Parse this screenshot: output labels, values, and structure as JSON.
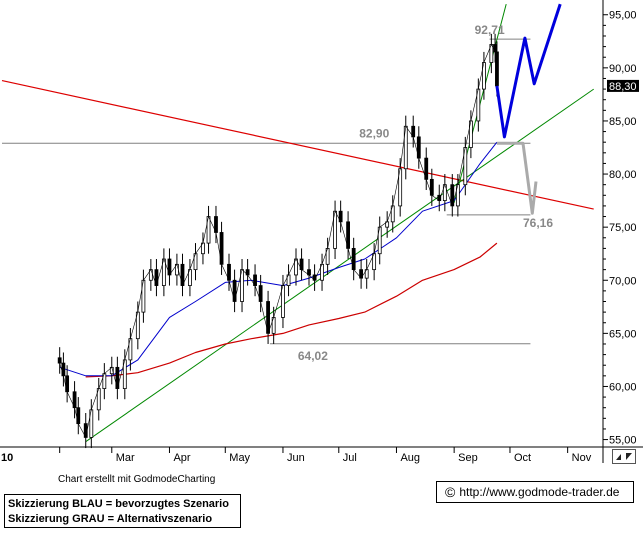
{
  "chart_data": {
    "type": "candlestick",
    "x_labels": [
      "10",
      "Mar",
      "Apr",
      "May",
      "Jun",
      "Jul",
      "Aug",
      "Sep",
      "Oct",
      "Nov"
    ],
    "y_ticks": [
      "95,00",
      "90,00",
      "85,00",
      "80,00",
      "75,00",
      "70,00",
      "65,00",
      "60,00",
      "55,00"
    ],
    "y_tick_values": [
      95,
      90,
      85,
      80,
      75,
      70,
      65,
      60,
      55
    ],
    "ylim": [
      54.3,
      96.2
    ],
    "last_price": "88,30",
    "last_price_value": 88.3,
    "annotations": [
      {
        "text": "92,71",
        "value": 92.71
      },
      {
        "text": "82,90",
        "value": 82.9
      },
      {
        "text": "76,16",
        "value": 76.16
      },
      {
        "text": "64,02",
        "value": 64.02
      }
    ],
    "close_series": [
      [
        "2010-02-01",
        62.2
      ],
      [
        "2010-02-03",
        61.0
      ],
      [
        "2010-02-05",
        59.5
      ],
      [
        "2010-02-09",
        58.0
      ],
      [
        "2010-02-11",
        56.5
      ],
      [
        "2010-02-15",
        55.2
      ],
      [
        "2010-02-18",
        57.8
      ],
      [
        "2010-02-22",
        59.8
      ],
      [
        "2010-02-25",
        61.2
      ],
      [
        "2010-03-01",
        61.8
      ],
      [
        "2010-03-04",
        59.8
      ],
      [
        "2010-03-08",
        62.5
      ],
      [
        "2010-03-11",
        64.5
      ],
      [
        "2010-03-15",
        67.0
      ],
      [
        "2010-03-18",
        70.0
      ],
      [
        "2010-03-22",
        71.0
      ],
      [
        "2010-03-25",
        69.5
      ],
      [
        "2010-03-29",
        72.0
      ],
      [
        "2010-04-01",
        70.5
      ],
      [
        "2010-04-05",
        71.5
      ],
      [
        "2010-04-08",
        69.5
      ],
      [
        "2010-04-12",
        71.0
      ],
      [
        "2010-04-15",
        72.5
      ],
      [
        "2010-04-19",
        73.5
      ],
      [
        "2010-04-22",
        76.0
      ],
      [
        "2010-04-26",
        74.5
      ],
      [
        "2010-04-29",
        71.5
      ],
      [
        "2010-05-03",
        70.0
      ],
      [
        "2010-05-06",
        68.0
      ],
      [
        "2010-05-10",
        71.0
      ],
      [
        "2010-05-13",
        70.5
      ],
      [
        "2010-05-17",
        69.5
      ],
      [
        "2010-05-20",
        68.0
      ],
      [
        "2010-05-24",
        65.0
      ],
      [
        "2010-05-27",
        66.5
      ],
      [
        "2010-06-01",
        69.5
      ],
      [
        "2010-06-04",
        70.5
      ],
      [
        "2010-06-08",
        72.0
      ],
      [
        "2010-06-11",
        71.0
      ],
      [
        "2010-06-15",
        70.5
      ],
      [
        "2010-06-18",
        70.0
      ],
      [
        "2010-06-22",
        71.5
      ],
      [
        "2010-06-25",
        73.0
      ],
      [
        "2010-06-29",
        76.5
      ],
      [
        "2010-07-02",
        75.5
      ],
      [
        "2010-07-06",
        73.0
      ],
      [
        "2010-07-09",
        71.0
      ],
      [
        "2010-07-13",
        70.2
      ],
      [
        "2010-07-16",
        71.0
      ],
      [
        "2010-07-20",
        72.5
      ],
      [
        "2010-07-23",
        75.0
      ],
      [
        "2010-07-27",
        75.5
      ],
      [
        "2010-07-30",
        77.0
      ],
      [
        "2010-08-03",
        80.5
      ],
      [
        "2010-08-06",
        84.5
      ],
      [
        "2010-08-10",
        83.5
      ],
      [
        "2010-08-13",
        81.5
      ],
      [
        "2010-08-17",
        79.5
      ],
      [
        "2010-08-20",
        78.0
      ],
      [
        "2010-08-24",
        77.5
      ],
      [
        "2010-08-27",
        79.0
      ],
      [
        "2010-08-31",
        77.0
      ],
      [
        "2010-09-03",
        79.0
      ],
      [
        "2010-09-07",
        82.5
      ],
      [
        "2010-09-10",
        85.0
      ],
      [
        "2010-09-14",
        88.0
      ],
      [
        "2010-09-17",
        90.5
      ],
      [
        "2010-09-21",
        92.2
      ],
      [
        "2010-09-23",
        91.5
      ],
      [
        "2010-09-24",
        88.3
      ]
    ],
    "ma_blue": [
      [
        "2010-02-01",
        61.8
      ],
      [
        "2010-02-15",
        61.0
      ],
      [
        "2010-03-01",
        61.0
      ],
      [
        "2010-03-15",
        62.5
      ],
      [
        "2010-04-01",
        66.5
      ],
      [
        "2010-04-15",
        68.0
      ],
      [
        "2010-05-01",
        69.8
      ],
      [
        "2010-05-15",
        70.0
      ],
      [
        "2010-06-01",
        69.5
      ],
      [
        "2010-06-15",
        70.2
      ],
      [
        "2010-07-01",
        71.2
      ],
      [
        "2010-07-15",
        72.0
      ],
      [
        "2010-08-01",
        74.0
      ],
      [
        "2010-08-15",
        76.5
      ],
      [
        "2010-09-01",
        77.5
      ],
      [
        "2010-09-15",
        81.0
      ],
      [
        "2010-09-24",
        83.0
      ]
    ],
    "ma_red": [
      [
        "2010-02-15",
        60.9
      ],
      [
        "2010-03-01",
        61.0
      ],
      [
        "2010-03-15",
        61.3
      ],
      [
        "2010-04-01",
        62.2
      ],
      [
        "2010-04-15",
        63.2
      ],
      [
        "2010-05-01",
        64.0
      ],
      [
        "2010-05-15",
        64.5
      ],
      [
        "2010-06-01",
        65.0
      ],
      [
        "2010-06-15",
        65.8
      ],
      [
        "2010-07-01",
        66.4
      ],
      [
        "2010-07-15",
        67.0
      ],
      [
        "2010-08-01",
        68.5
      ],
      [
        "2010-08-15",
        70.0
      ],
      [
        "2010-09-01",
        71.0
      ],
      [
        "2010-09-15",
        72.2
      ],
      [
        "2010-09-24",
        73.5
      ]
    ],
    "trendline_red": [
      [
        "2010-01-01",
        88.8
      ],
      [
        "2010-11-15",
        76.7
      ]
    ],
    "trendline_green_long": [
      [
        "2010-02-15",
        54.8
      ],
      [
        "2010-11-15",
        88.0
      ]
    ],
    "trendline_green_steep": [
      [
        "2010-09-01",
        77.3
      ],
      [
        "2010-09-29",
        96.0
      ]
    ],
    "horizontal_lines": [
      {
        "value": 82.9,
        "from": "2010-01-01",
        "to": "2010-10-12",
        "color": "#808080"
      },
      {
        "value": 92.71,
        "from": "2010-09-20",
        "to": "2010-10-12",
        "color": "#808080"
      },
      {
        "value": 76.16,
        "from": "2010-08-28",
        "to": "2010-10-12",
        "color": "#808080"
      },
      {
        "value": 64.02,
        "from": "2010-05-25",
        "to": "2010-10-12",
        "color": "#808080"
      }
    ],
    "scenario_blue": [
      [
        "2010-09-24",
        88.3
      ],
      [
        "2010-09-28",
        83.5
      ],
      [
        "2010-10-09",
        92.8
      ],
      [
        "2010-10-14",
        88.5
      ],
      [
        "2010-10-28",
        96.0
      ]
    ],
    "scenario_grey": [
      [
        "2010-09-24",
        82.9
      ],
      [
        "2010-10-08",
        82.9
      ],
      [
        "2010-10-13",
        76.3
      ],
      [
        "2010-10-15",
        79.3
      ]
    ],
    "colors": {
      "candles": "#000000",
      "ma_blue": "#0000cc",
      "ma_red": "#cc0000",
      "trend_red": "#dd0000",
      "trend_green": "#008800",
      "scenario_blue": "#0000dd",
      "scenario_grey": "#aaaaaa",
      "levels": "#808080",
      "price_label_bg": "#000000",
      "price_label_fg": "#ffffff"
    },
    "grid": false
  },
  "credit": "Chart erstellt mit GodmodeCharting",
  "legend": {
    "blue": "Skizzierung BLAU = bevorzugtes Szenario",
    "grey": "Skizzierung GRAU = Alternativszenario"
  },
  "url": {
    "icon": "copyright-icon",
    "text": "http://www.godmode-trader.de"
  }
}
